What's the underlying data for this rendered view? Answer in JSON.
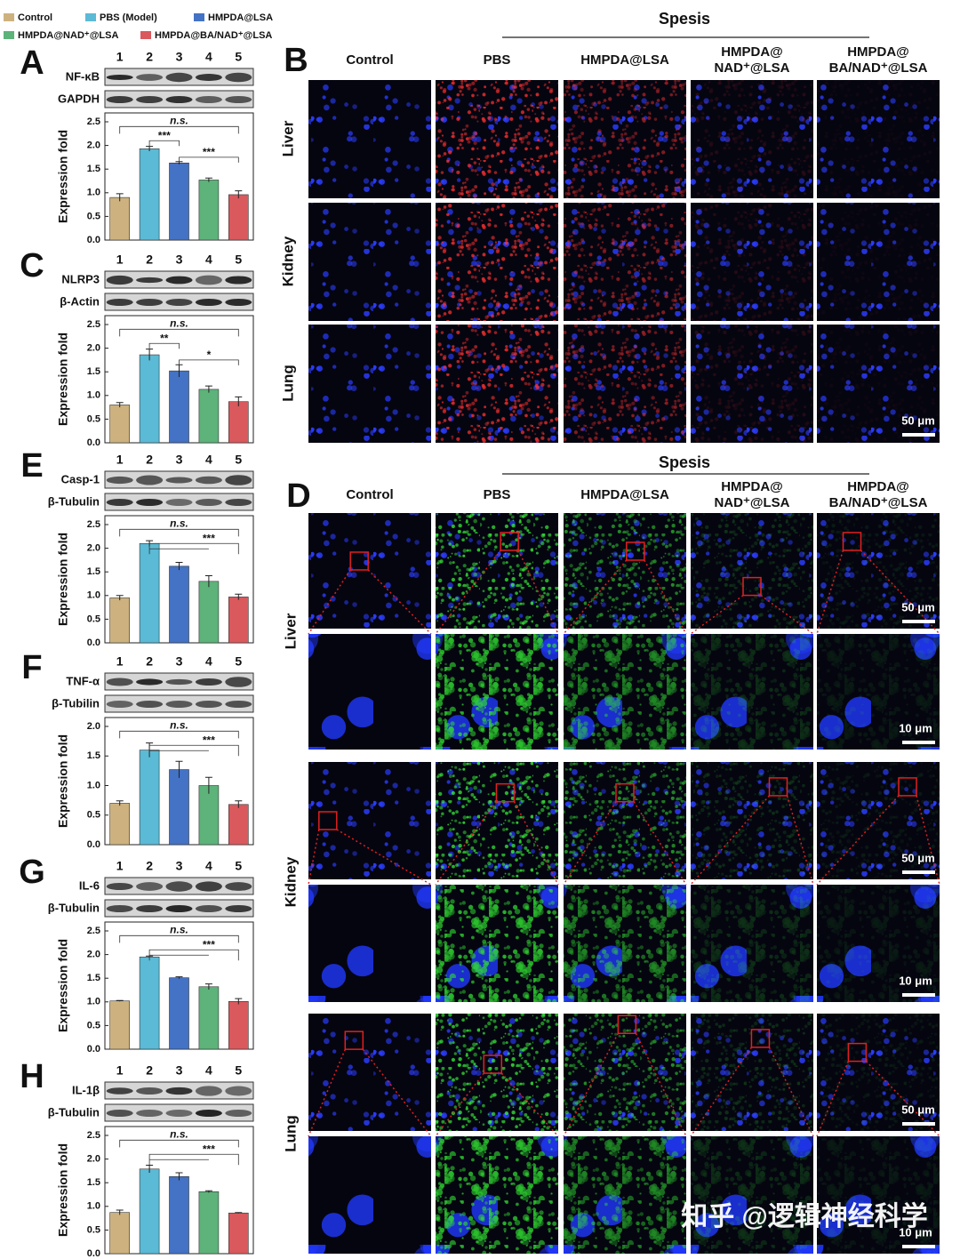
{
  "legend": {
    "names": [
      "Control",
      "PBS (Model)",
      "HMPDA@LSA",
      "HMPDA@NAD⁺@LSA",
      "HMPDA@BA/NAD⁺@LSA"
    ],
    "colors": [
      "#cdb27f",
      "#5bbad5",
      "#4472c4",
      "#5db37a",
      "#d9595d"
    ]
  },
  "chart_data": [
    {
      "type": "bar",
      "label": "A",
      "lanes": [
        1,
        2,
        3,
        4,
        5
      ],
      "blots": [
        "NF-κB",
        "GAPDH"
      ],
      "y_label": "Expression fold",
      "ylim": [
        0,
        2.5
      ],
      "yticks": [
        {
          "value": 0,
          "label": "0.0"
        },
        {
          "value": 0.5,
          "label": "0.5"
        },
        {
          "value": 1,
          "label": "1.0"
        },
        {
          "value": 1.5,
          "label": "1.5"
        },
        {
          "value": 2,
          "label": "2.0"
        },
        {
          "value": 2.5,
          "label": "2.5"
        }
      ],
      "values": [
        0.9,
        1.93,
        1.63,
        1.27,
        0.96
      ],
      "errors": [
        0.08,
        0.05,
        0.03,
        0.04,
        0.08
      ],
      "annotations": [
        "n.s.",
        "***",
        "***"
      ]
    },
    {
      "type": "bar",
      "label": "C",
      "lanes": [
        1,
        2,
        3,
        4,
        5
      ],
      "blots": [
        "NLRP3",
        "β-Actin"
      ],
      "y_label": "Expression fold",
      "ylim": [
        0,
        2.5
      ],
      "yticks": [
        {
          "value": 0,
          "label": "0.0"
        },
        {
          "value": 0.5,
          "label": "0.5"
        },
        {
          "value": 1,
          "label": "1.0"
        },
        {
          "value": 1.5,
          "label": "1.5"
        },
        {
          "value": 2,
          "label": "2.0"
        },
        {
          "value": 2.5,
          "label": "2.5"
        }
      ],
      "values": [
        0.8,
        1.86,
        1.52,
        1.13,
        0.87
      ],
      "errors": [
        0.05,
        0.12,
        0.13,
        0.07,
        0.1
      ],
      "annotations": [
        "n.s.",
        "**",
        "*"
      ]
    },
    {
      "type": "bar",
      "label": "E",
      "lanes": [
        1,
        2,
        3,
        4,
        5
      ],
      "blots": [
        "Casp-1",
        "β-Tubulin"
      ],
      "y_label": "Expression fold",
      "ylim": [
        0,
        2.5
      ],
      "yticks": [
        {
          "value": 0,
          "label": "0.0"
        },
        {
          "value": 0.5,
          "label": "0.5"
        },
        {
          "value": 1,
          "label": "1.0"
        },
        {
          "value": 1.5,
          "label": "1.5"
        },
        {
          "value": 2,
          "label": "2.0"
        },
        {
          "value": 2.5,
          "label": "2.5"
        }
      ],
      "values": [
        0.95,
        2.1,
        1.62,
        1.3,
        0.97
      ],
      "errors": [
        0.05,
        0.06,
        0.08,
        0.12,
        0.06
      ],
      "annotations": [
        "n.s.",
        "***"
      ]
    },
    {
      "type": "bar",
      "label": "F",
      "lanes": [
        1,
        2,
        3,
        4,
        5
      ],
      "blots": [
        "TNF-α",
        "β-Tubilin"
      ],
      "y_label": "Expression fold",
      "ylim": [
        0,
        2
      ],
      "yticks": [
        {
          "value": 0,
          "label": "0.0"
        },
        {
          "value": 0.5,
          "label": "0.5"
        },
        {
          "value": 1,
          "label": "1.0"
        },
        {
          "value": 1.5,
          "label": "1.5"
        },
        {
          "value": 2,
          "label": "2.0"
        }
      ],
      "values": [
        0.7,
        1.6,
        1.27,
        1.0,
        0.68
      ],
      "errors": [
        0.04,
        0.12,
        0.14,
        0.14,
        0.06
      ],
      "annotations": [
        "n.s.",
        "***"
      ]
    },
    {
      "type": "bar",
      "label": "G",
      "lanes": [
        1,
        2,
        3,
        4,
        5
      ],
      "blots": [
        "IL-6",
        "β-Tubulin"
      ],
      "y_label": "Expression fold",
      "ylim": [
        0,
        2.5
      ],
      "yticks": [
        {
          "value": 0,
          "label": "0.0"
        },
        {
          "value": 0.5,
          "label": "0.5"
        },
        {
          "value": 1,
          "label": "1.0"
        },
        {
          "value": 1.5,
          "label": "1.5"
        },
        {
          "value": 2,
          "label": "2.0"
        },
        {
          "value": 2.5,
          "label": "2.5"
        }
      ],
      "values": [
        1.02,
        1.95,
        1.51,
        1.32,
        1.01
      ],
      "errors": [
        0.01,
        0.02,
        0.02,
        0.06,
        0.06
      ],
      "annotations": [
        "n.s.",
        "***"
      ]
    },
    {
      "type": "bar",
      "label": "H",
      "lanes": [
        1,
        2,
        3,
        4,
        5
      ],
      "blots": [
        "IL-1β",
        "β-Tubulin"
      ],
      "y_label": "Expression fold",
      "ylim": [
        0,
        2.5
      ],
      "yticks": [
        {
          "value": 0,
          "label": "0.0"
        },
        {
          "value": 0.5,
          "label": "0.5"
        },
        {
          "value": 1,
          "label": "1.0"
        },
        {
          "value": 1.5,
          "label": "1.5"
        },
        {
          "value": 2,
          "label": "2.0"
        },
        {
          "value": 2.5,
          "label": "2.5"
        }
      ],
      "values": [
        0.87,
        1.79,
        1.63,
        1.31,
        0.86
      ],
      "errors": [
        0.05,
        0.08,
        0.08,
        0.02,
        0.01
      ],
      "annotations": [
        "n.s.",
        "***"
      ]
    }
  ],
  "panel_b": {
    "label": "B",
    "group": "Spesis",
    "columns": [
      [
        "Control"
      ],
      [
        "PBS"
      ],
      [
        "HMPDA@LSA"
      ],
      [
        "HMPDA@",
        "NAD⁺@LSA"
      ],
      [
        "HMPDA@",
        "BA/NAD⁺@LSA"
      ]
    ],
    "rows": [
      "Liver",
      "Kidney",
      "Lung"
    ],
    "scale_bar": "50 μm"
  },
  "panel_d": {
    "label": "D",
    "group": "Spesis",
    "columns": [
      [
        "Control"
      ],
      [
        "PBS"
      ],
      [
        "HMPDA@LSA"
      ],
      [
        "HMPDA@",
        "NAD⁺@LSA"
      ],
      [
        "HMPDA@",
        "BA/NAD⁺@LSA"
      ]
    ],
    "rows": [
      "Liver",
      "Kidney",
      "Lung"
    ],
    "scale_bars": [
      "50 μm",
      "10 μm"
    ]
  },
  "watermark": "知乎 @逻辑神经科学"
}
